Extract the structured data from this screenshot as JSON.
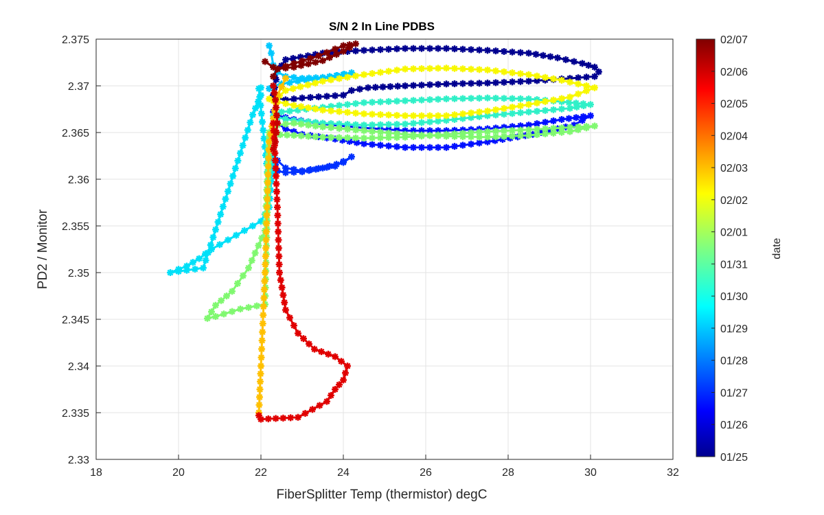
{
  "chart_data": {
    "type": "line",
    "title": "S/N 2 In Line PDBS",
    "xlabel": "FiberSplitter Temp (thermistor) degC",
    "ylabel": "PD2 / Monitor",
    "xlim": [
      18,
      32
    ],
    "ylim": [
      2.33,
      2.375
    ],
    "x_ticks": [
      18,
      20,
      22,
      24,
      26,
      28,
      30,
      32
    ],
    "y_ticks": [
      2.33,
      2.335,
      2.34,
      2.345,
      2.35,
      2.355,
      2.36,
      2.365,
      2.37,
      2.375
    ],
    "grid": true,
    "marker": "asterisk",
    "colorbar": {
      "label": "date",
      "colormap": "jet",
      "ticks": [
        "01/25",
        "01/26",
        "01/27",
        "01/28",
        "01/29",
        "01/30",
        "01/31",
        "02/01",
        "02/02",
        "02/03",
        "02/04",
        "02/05",
        "02/06",
        "02/07"
      ]
    },
    "series": [
      {
        "date": "01/25",
        "color": "#00008f",
        "x": [
          22.3,
          22.4,
          22.6,
          23.5,
          24.5,
          25.5,
          26.5,
          27.5,
          28.5,
          29.2,
          29.8,
          30.1,
          30.2,
          30.1,
          29.5,
          28.5,
          27.5,
          26.5,
          25.5,
          24.6,
          24.2,
          24.0,
          23.0,
          22.6,
          22.4,
          22.3
        ],
        "y": [
          2.369,
          2.3715,
          2.3728,
          2.3735,
          2.3738,
          2.374,
          2.374,
          2.3738,
          2.3735,
          2.373,
          2.3724,
          2.372,
          2.3715,
          2.371,
          2.3708,
          2.3705,
          2.3703,
          2.3702,
          2.37,
          2.3698,
          2.3695,
          2.369,
          2.3687,
          2.3685,
          2.3687,
          2.369
        ]
      },
      {
        "date": "01/26",
        "color": "#0010ff",
        "x": [
          22.3,
          22.4,
          22.8,
          23.5,
          24.5,
          25.5,
          26.5,
          27.5,
          28.5,
          29.3,
          30.0,
          29.6,
          28.6,
          27.5,
          26.5,
          25.5,
          24.5,
          23.8,
          23.0,
          22.6,
          22.4
        ],
        "y": [
          2.3672,
          2.3668,
          2.3664,
          2.3659,
          2.3655,
          2.3652,
          2.3652,
          2.3654,
          2.3658,
          2.3664,
          2.3668,
          2.3658,
          2.3648,
          2.364,
          2.3634,
          2.3634,
          2.3638,
          2.3643,
          2.3648,
          2.3654,
          2.366
        ]
      },
      {
        "date": "01/27",
        "color": "#0030ff",
        "x": [
          22.3,
          22.4,
          22.6,
          23.0,
          23.5,
          24.0,
          24.2,
          23.8,
          23.0,
          22.6,
          22.4
        ],
        "y": [
          2.3622,
          2.3609,
          2.3607,
          2.3608,
          2.3612,
          2.3618,
          2.3624,
          2.3614,
          2.3609,
          2.3612,
          2.362
        ]
      },
      {
        "date": "01/29",
        "color": "#00c8ff",
        "x": [
          22.2,
          22.25,
          22.3,
          22.4,
          22.6,
          23.0,
          23.5,
          24.0,
          24.2,
          23.5,
          22.9,
          22.5,
          22.3,
          22.2
        ],
        "y": [
          2.3743,
          2.3735,
          2.3722,
          2.3715,
          2.371,
          2.3708,
          2.3709,
          2.3712,
          2.3714,
          2.3708,
          2.3705,
          2.3702,
          2.37,
          2.3697
        ]
      },
      {
        "date": "01/30",
        "color": "#00e0f8",
        "x": [
          22.0,
          21.95,
          22.2,
          22.3,
          22.2,
          22.0,
          21.6,
          21.2,
          20.8,
          20.5,
          20.2,
          19.8,
          20.6,
          21.8,
          22.0
        ],
        "y": [
          2.3698,
          2.3697,
          2.359,
          2.3625,
          2.357,
          2.3555,
          2.3545,
          2.3535,
          2.3525,
          2.3515,
          2.3507,
          2.35,
          2.3505,
          2.3669,
          2.369
        ]
      },
      {
        "date": "01/31",
        "color": "#30f0c8",
        "x": [
          22.3,
          22.5,
          23.5,
          24.5,
          25.5,
          26.5,
          27.5,
          28.5,
          29.3,
          30.0,
          29.5,
          28.5,
          27.5,
          26.5,
          25.5,
          24.5,
          23.5,
          22.8,
          22.4
        ],
        "y": [
          2.3668,
          2.3672,
          2.3677,
          2.3682,
          2.3684,
          2.3686,
          2.3687,
          2.3686,
          2.3683,
          2.368,
          2.3676,
          2.3672,
          2.3668,
          2.3663,
          2.3659,
          2.3658,
          2.366,
          2.3663,
          2.3666
        ]
      },
      {
        "date": "02/01",
        "color": "#80f870",
        "x": [
          22.2,
          22.3,
          22.8,
          23.5,
          24.5,
          25.5,
          26.5,
          27.5,
          28.5,
          29.3,
          30.1,
          29.5,
          28.5,
          27.5,
          26.5,
          25.5,
          24.5,
          23.5,
          22.8,
          22.4,
          22.2,
          22.1,
          21.7,
          21.3,
          20.9,
          20.7,
          20.9,
          21.5,
          22.1,
          22.2
        ],
        "y": [
          2.3645,
          2.3648,
          2.3647,
          2.3645,
          2.3644,
          2.3645,
          2.3648,
          2.3651,
          2.3653,
          2.3655,
          2.3657,
          2.3651,
          2.3647,
          2.3645,
          2.3646,
          2.3648,
          2.3652,
          2.3656,
          2.366,
          2.3658,
          2.365,
          2.3545,
          2.3505,
          2.348,
          2.3465,
          2.3451,
          2.3453,
          2.3461,
          2.3466,
          2.3645
        ]
      },
      {
        "date": "02/02",
        "color": "#f8f800",
        "x": [
          22.3,
          22.6,
          23.5,
          24.5,
          25.5,
          26.5,
          27.5,
          28.5,
          29.3,
          30.1,
          29.5,
          28.5,
          27.5,
          26.5,
          25.5,
          24.5,
          23.5,
          22.8,
          22.4,
          22.2
        ],
        "y": [
          2.3684,
          2.3695,
          2.3705,
          2.3712,
          2.3718,
          2.3719,
          2.3717,
          2.3712,
          2.3706,
          2.3698,
          2.3688,
          2.368,
          2.3673,
          2.3668,
          2.3668,
          2.367,
          2.3674,
          2.3679,
          2.3683,
          2.3686
        ]
      },
      {
        "date": "02/03",
        "color": "#ffc000",
        "x": [
          22.6,
          22.4,
          22.2,
          22.1,
          22.0,
          21.95
        ],
        "y": [
          2.3708,
          2.369,
          2.364,
          2.35,
          2.34,
          2.335
        ]
      },
      {
        "date": "02/05",
        "color": "#e00000",
        "x": [
          22.3,
          22.35,
          22.4,
          22.45,
          22.6,
          22.9,
          23.3,
          23.8,
          24.1,
          24.0,
          23.8,
          23.6,
          22.9,
          22.0,
          21.95
        ],
        "y": [
          2.366,
          2.362,
          2.357,
          2.35,
          2.346,
          2.3435,
          2.3418,
          2.341,
          2.34,
          2.3385,
          2.3375,
          2.3362,
          2.3345,
          2.3343,
          2.3347
        ]
      },
      {
        "date": "02/06",
        "color": "#c80000",
        "x": [
          22.3,
          22.35,
          22.4,
          22.35,
          22.3
        ],
        "y": [
          2.37,
          2.3685,
          2.366,
          2.364,
          2.3632
        ]
      },
      {
        "date": "02/07",
        "color": "#800000",
        "x": [
          22.1,
          22.3,
          22.4,
          22.8,
          23.5,
          24.0,
          24.3,
          24.0,
          23.4,
          22.8,
          22.4,
          22.3
        ],
        "y": [
          2.3726,
          2.372,
          2.3718,
          2.372,
          2.3727,
          2.3737,
          2.3745,
          2.3743,
          2.3732,
          2.3724,
          2.3718,
          2.371
        ]
      }
    ]
  }
}
